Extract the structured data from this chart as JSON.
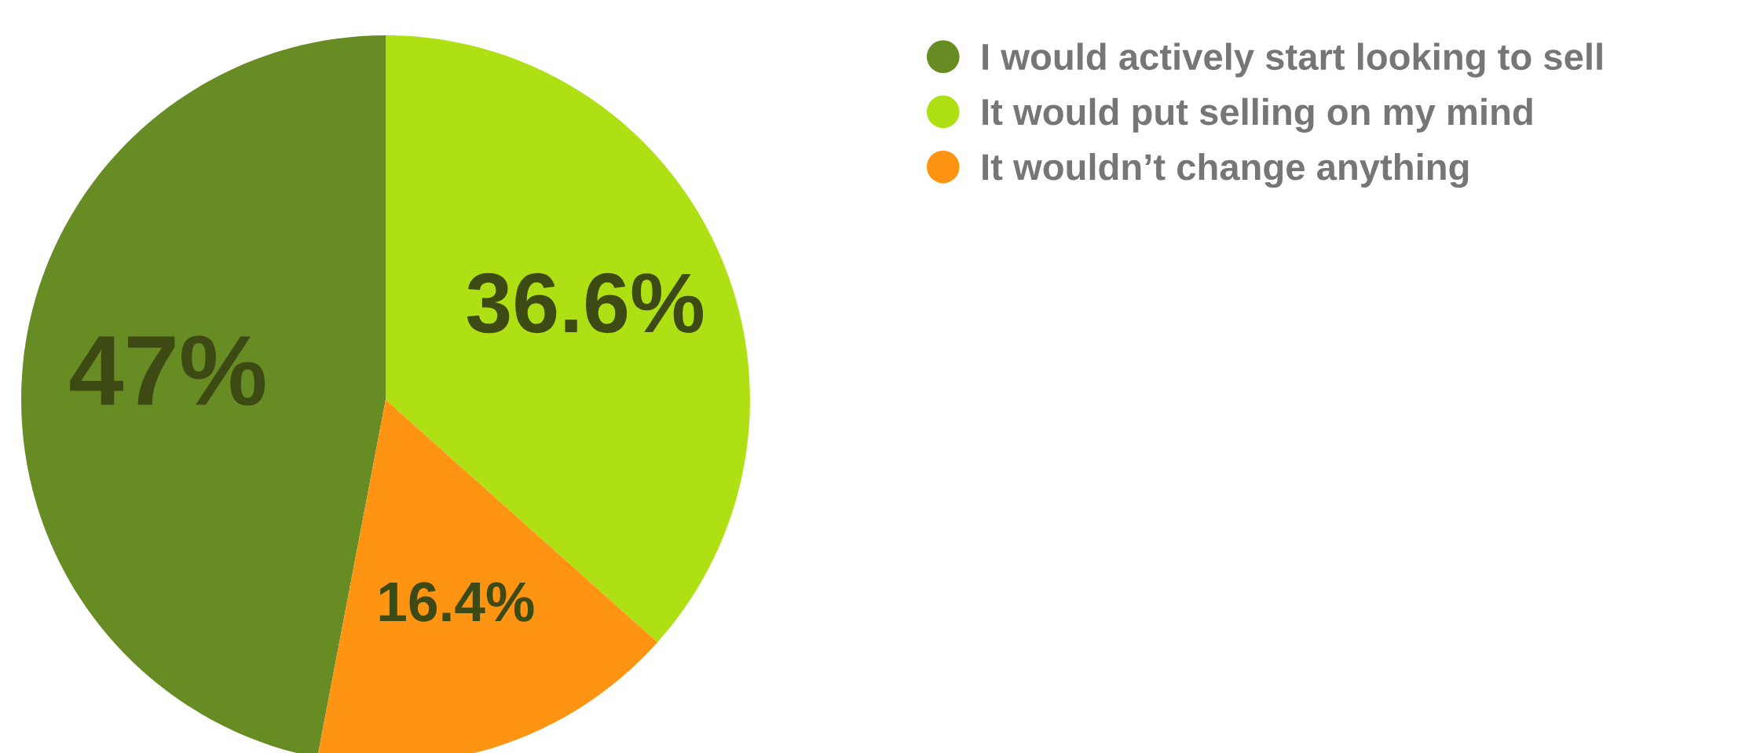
{
  "chart_data": {
    "type": "pie",
    "categories": [
      "I would actively start looking to sell",
      "It would put selling on my mind",
      "It wouldn’t change anything"
    ],
    "values": [
      47,
      36.6,
      16.4
    ],
    "colors": [
      "#688c24",
      "#aee014",
      "#ff9412"
    ],
    "value_labels": [
      "47%",
      "36.6%",
      "16.4%"
    ],
    "legend": "top right"
  }
}
